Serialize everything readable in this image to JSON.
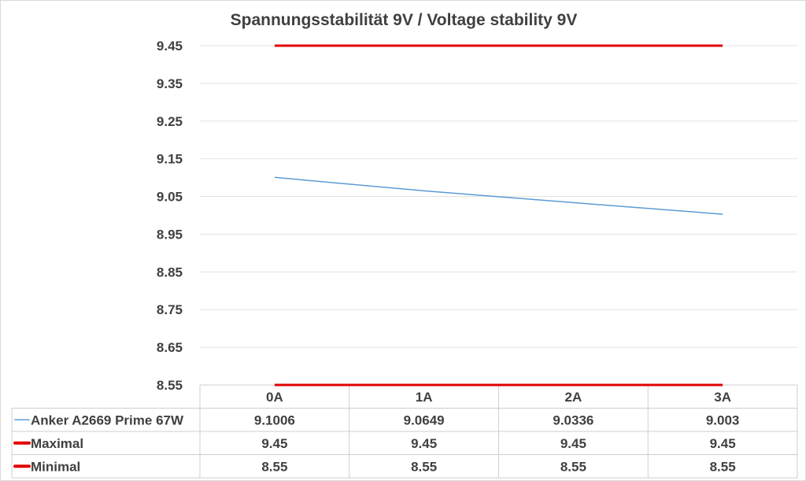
{
  "chart_data": {
    "type": "line",
    "title": "Spannungsstabilität 9V / Voltage stability 9V",
    "categories": [
      "0A",
      "1A",
      "2A",
      "3A"
    ],
    "ylim": [
      8.55,
      9.45
    ],
    "yticks": [
      "9.45",
      "9.35",
      "9.25",
      "9.15",
      "9.05",
      "8.95",
      "8.85",
      "8.75",
      "8.65",
      "8.55"
    ],
    "grid": true,
    "legend": "data-table",
    "series": [
      {
        "name": "Anker A2669 Prime 67W",
        "values": [
          9.1006,
          9.0649,
          9.0336,
          9.003
        ],
        "labels": [
          "9.1006",
          "9.0649",
          "9.0336",
          "9.003"
        ],
        "color": "#5b9bd5"
      },
      {
        "name": "Maximal",
        "values": [
          9.45,
          9.45,
          9.45,
          9.45
        ],
        "labels": [
          "9.45",
          "9.45",
          "9.45",
          "9.45"
        ],
        "color": "#e00000"
      },
      {
        "name": "Minimal",
        "values": [
          8.55,
          8.55,
          8.55,
          8.55
        ],
        "labels": [
          "8.55",
          "8.55",
          "8.55",
          "8.55"
        ],
        "color": "#e00000"
      }
    ]
  }
}
